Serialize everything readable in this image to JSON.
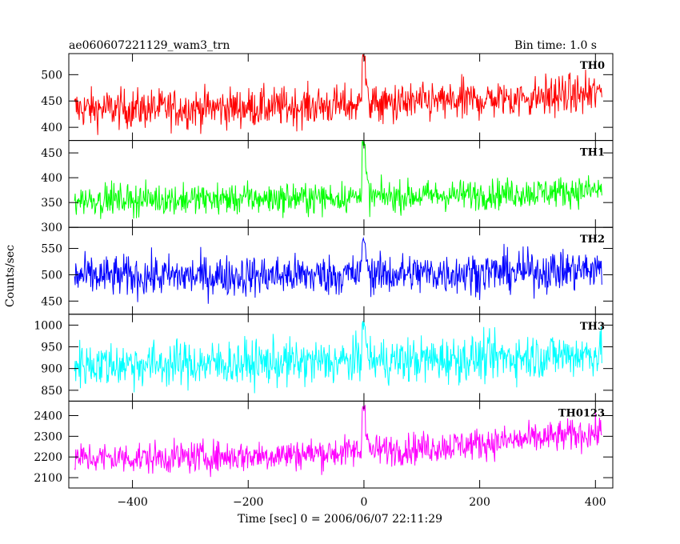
{
  "header": {
    "title": "ae060607221129_wam3_trn",
    "bin_time": "Bin time: 1.0 s"
  },
  "axes": {
    "xlabel": "Time [sec] 0 = 2006/06/07 22:11:29",
    "ylabel": "Counts/sec"
  },
  "chart_data": {
    "type": "line",
    "title": "ae060607221129_wam3_trn",
    "subtitle": "Bin time: 1.0 s",
    "xlabel": "Time [sec] 0 = 2006/06/07 22:11:29",
    "ylabel": "Counts/sec",
    "xlim": [
      -510,
      430
    ],
    "x_ticks": [
      -400,
      -200,
      0,
      200,
      400
    ],
    "x_range_data": [
      -500,
      411
    ],
    "panels": [
      {
        "name": "TH0",
        "color": "#ff0000",
        "ylim": [
          375,
          540
        ],
        "y_ticks": [
          400,
          450,
          500
        ],
        "mean_start": 435,
        "mean_end": 465,
        "noise": 27,
        "burst_peak": 540
      },
      {
        "name": "TH1",
        "color": "#00ff00",
        "ylim": [
          300,
          475
        ],
        "y_ticks": [
          300,
          350,
          400,
          450
        ],
        "mean_start": 356,
        "mean_end": 375,
        "noise": 22,
        "burst_peak": 475
      },
      {
        "name": "TH2",
        "color": "#0000ff",
        "ylim": [
          425,
          590
        ],
        "y_ticks": [
          450,
          500,
          550
        ],
        "mean_start": 497,
        "mean_end": 510,
        "noise": 28,
        "burst_peak": 575
      },
      {
        "name": "TH3",
        "color": "#00ffff",
        "ylim": [
          825,
          1025
        ],
        "y_ticks": [
          850,
          900,
          950,
          1000
        ],
        "mean_start": 910,
        "mean_end": 935,
        "noise": 38,
        "burst_peak": 1010
      },
      {
        "name": "TH0123",
        "color": "#ff00ff",
        "ylim": [
          2050,
          2470
        ],
        "y_ticks": [
          2100,
          2200,
          2300,
          2400
        ],
        "mean_start": 2195,
        "mean_end": 2320,
        "noise": 55,
        "burst_peak": 2450
      }
    ]
  }
}
